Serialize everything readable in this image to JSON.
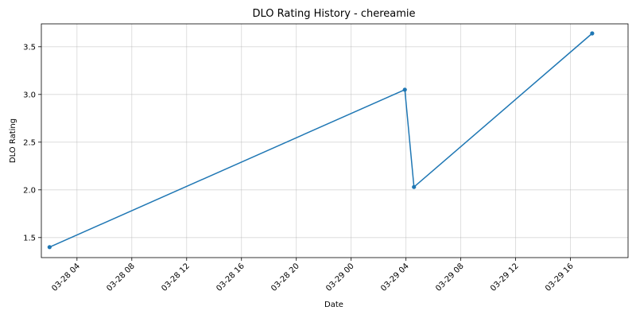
{
  "chart_data": {
    "type": "line",
    "title": "DLO Rating History - chereamie",
    "xlabel": "Date",
    "ylabel": "DLO Rating",
    "x_ticks": [
      {
        "t": "2024-03-28T04:00",
        "label": "03-28 04"
      },
      {
        "t": "2024-03-28T08:00",
        "label": "03-28 08"
      },
      {
        "t": "2024-03-28T12:00",
        "label": "03-28 12"
      },
      {
        "t": "2024-03-28T16:00",
        "label": "03-28 16"
      },
      {
        "t": "2024-03-28T20:00",
        "label": "03-28 20"
      },
      {
        "t": "2024-03-29T00:00",
        "label": "03-29 00"
      },
      {
        "t": "2024-03-29T04:00",
        "label": "03-29 04"
      },
      {
        "t": "2024-03-29T08:00",
        "label": "03-29 08"
      },
      {
        "t": "2024-03-29T12:00",
        "label": "03-29 12"
      },
      {
        "t": "2024-03-29T16:00",
        "label": "03-29 16"
      }
    ],
    "y_ticks": [
      1.5,
      2.0,
      2.5,
      3.0,
      3.5
    ],
    "xlim": [
      "2024-03-28T01:24",
      "2024-03-29T20:12"
    ],
    "ylim": [
      1.29,
      3.74
    ],
    "grid": true,
    "series": [
      {
        "color": "#1f77b4",
        "points": [
          {
            "x": "2024-03-28T02:00",
            "y": 1.4
          },
          {
            "x": "2024-03-29T03:55",
            "y": 3.05
          },
          {
            "x": "2024-03-29T04:35",
            "y": 2.03
          },
          {
            "x": "2024-03-29T17:35",
            "y": 3.64
          }
        ]
      }
    ]
  }
}
